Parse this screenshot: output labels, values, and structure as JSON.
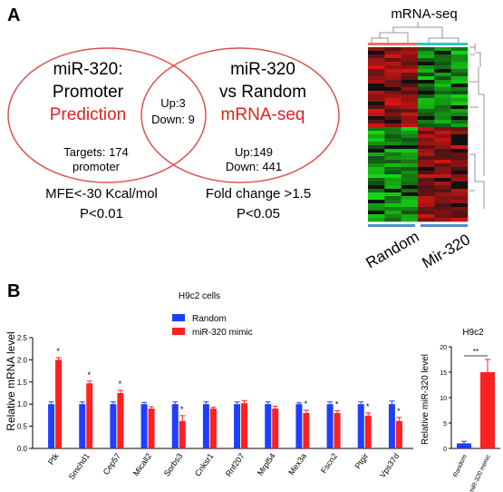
{
  "panel_a": {
    "letter": "A",
    "venn": {
      "left": {
        "line1": "miR-320:",
        "line2": "Promoter",
        "line3": "Prediction",
        "targets1": "Targets: 174",
        "targets2": "promoter"
      },
      "right": {
        "line1": "miR-320",
        "line2": "vs Random",
        "line3": "mRNA-seq",
        "up": "Up:149",
        "down": "Down: 441"
      },
      "overlap": {
        "up": "Up:3",
        "down": "Down: 9"
      },
      "left_criteria": {
        "line1": "MFE<-30 Kcal/mol",
        "line2": "P<0.01"
      },
      "right_criteria": {
        "line1": "Fold change >1.5",
        "line2": "P<0.05"
      },
      "colors": {
        "circle": "#e05050",
        "highlight": "#e02020"
      }
    },
    "heatmap": {
      "title": "mRNA-seq",
      "group_labels": [
        "Random",
        "Mir-320"
      ],
      "group_colors": [
        "#e8716f",
        "#35c4d0"
      ],
      "bar_color": "#4a8fd0"
    }
  },
  "panel_b": {
    "letter": "B",
    "colors": {
      "random": "#1f3fff",
      "mimic": "#ff2020"
    }
  },
  "chart_data": [
    {
      "type": "bar",
      "title": "H9c2 cells",
      "ylabel": "Relative mRNA level",
      "ylim": [
        0,
        2.5
      ],
      "yticks": [
        "0.0",
        "0.5",
        "1.0",
        "1.5",
        "2.0",
        "2.5"
      ],
      "categories": [
        "Ptk",
        "Smchd1",
        "Cep57",
        "Micall2",
        "Sorbs3",
        "Cnksr1",
        "Rnf207",
        "Mrpl54",
        "Mex3a",
        "Fscn2",
        "Ptgir",
        "Vps37d"
      ],
      "series": [
        {
          "name": "Random",
          "values": [
            1.0,
            1.0,
            1.0,
            1.0,
            1.0,
            1.0,
            1.0,
            1.0,
            1.0,
            1.0,
            1.0,
            1.0
          ],
          "errors": [
            0.05,
            0.05,
            0.05,
            0.04,
            0.05,
            0.05,
            0.05,
            0.05,
            0.03,
            0.05,
            0.05,
            0.07
          ]
        },
        {
          "name": "miR-320 mimic",
          "values": [
            2.0,
            1.47,
            1.25,
            0.9,
            0.62,
            0.9,
            1.02,
            0.9,
            0.8,
            0.8,
            0.74,
            0.62
          ],
          "errors": [
            0.05,
            0.05,
            0.06,
            0.04,
            0.12,
            0.03,
            0.06,
            0.05,
            0.06,
            0.05,
            0.06,
            0.08
          ]
        }
      ],
      "significance": [
        "*",
        "*",
        "*",
        "",
        "*",
        "",
        "",
        "",
        "*",
        "*",
        "*",
        "*"
      ],
      "legend": "top"
    },
    {
      "type": "bar",
      "title": "H9c2",
      "ylabel": "Relative miR-320 level",
      "ylim": [
        0,
        20
      ],
      "yticks": [
        "0",
        "5",
        "10",
        "15",
        "20"
      ],
      "categories": [
        "Random",
        "miR-320 mimic"
      ],
      "values": [
        1.0,
        15.0
      ],
      "errors": [
        0.4,
        2.5
      ],
      "significance": "**"
    }
  ]
}
